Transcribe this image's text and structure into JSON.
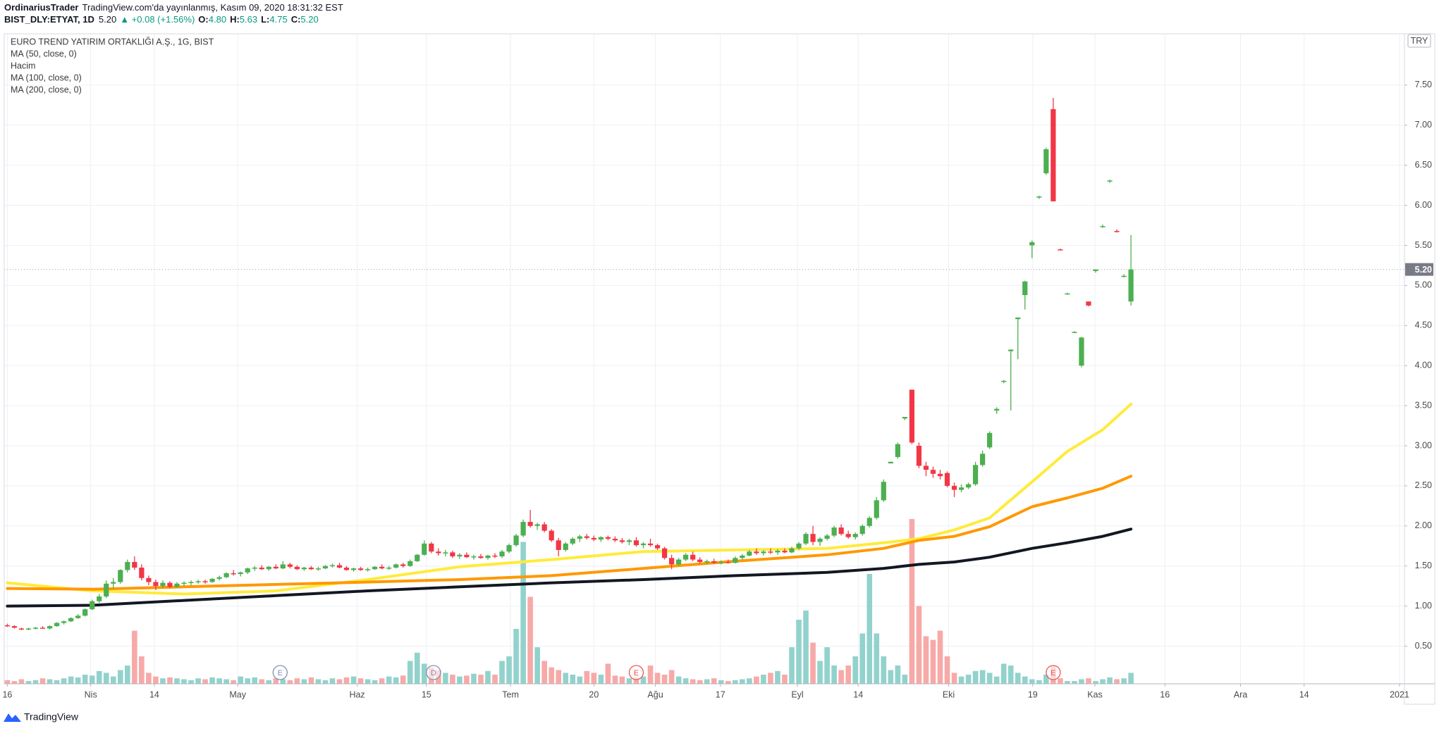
{
  "header": {
    "author": "OrdinariusTrader",
    "published": "TradingView.com'da yayınlanmış, Kasım 09, 2020 18:31:32 EST",
    "symbol": "BIST_DLY:ETYAT, 1D",
    "price": "5.20",
    "change": "▲ +0.08 (+1.56%)",
    "ohlc": [
      {
        "key": "O:",
        "value": "4.80"
      },
      {
        "key": "H:",
        "value": "5.63"
      },
      {
        "key": "L:",
        "value": "4.75"
      },
      {
        "key": "C:",
        "value": "5.20"
      }
    ]
  },
  "chart_data": {
    "type": "candlestick",
    "title": "EURO TREND YATIRIM ORTAKLIĞI A.Ş., 1G, BIST",
    "currency": "TRY",
    "volume_name": "Hacim",
    "up_color": "#4caf50",
    "down_color": "#f23645",
    "up_volume_color": "#92d2cc",
    "down_volume_color": "#f7a9a8",
    "last_price": {
      "value": 5.2,
      "label": "5.20"
    },
    "xlim": [
      -0.44,
      197.7
    ],
    "ylim": [
      0.03,
      8.14
    ],
    "grid": true,
    "xticks": [
      {
        "value": 0,
        "label": "16"
      },
      {
        "value": 11.8,
        "label": "Nis"
      },
      {
        "value": 20.8,
        "label": "14"
      },
      {
        "value": 32.6,
        "label": "May"
      },
      {
        "value": 49.5,
        "label": "Haz"
      },
      {
        "value": 59.3,
        "label": "15"
      },
      {
        "value": 71.2,
        "label": "Tem"
      },
      {
        "value": 83,
        "label": "20"
      },
      {
        "value": 91.7,
        "label": "Ağu"
      },
      {
        "value": 100.9,
        "label": "17"
      },
      {
        "value": 111.8,
        "label": "Eyl"
      },
      {
        "value": 120.4,
        "label": "14"
      },
      {
        "value": 133.2,
        "label": "Eki"
      },
      {
        "value": 145.1,
        "label": "19"
      },
      {
        "value": 153.9,
        "label": "Kas"
      },
      {
        "value": 163.8,
        "label": "16"
      },
      {
        "value": 174.5,
        "label": "Ara"
      },
      {
        "value": 183.5,
        "label": "14"
      },
      {
        "value": 197,
        "label": "2021"
      }
    ],
    "yticks": [
      {
        "value": 0.5,
        "label": "0.50"
      },
      {
        "value": 1,
        "label": "1.00"
      },
      {
        "value": 1.5,
        "label": "1.50"
      },
      {
        "value": 2,
        "label": "2.00"
      },
      {
        "value": 2.5,
        "label": "2.50"
      },
      {
        "value": 3,
        "label": "3.00"
      },
      {
        "value": 3.5,
        "label": "3.50"
      },
      {
        "value": 4,
        "label": "4.00"
      },
      {
        "value": 4.5,
        "label": "4.50"
      },
      {
        "value": 5,
        "label": "5.00"
      },
      {
        "value": 5.5,
        "label": "5.50"
      },
      {
        "value": 6,
        "label": "6.00"
      },
      {
        "value": 6.5,
        "label": "6.50"
      },
      {
        "value": 7,
        "label": "7.00"
      },
      {
        "value": 7.5,
        "label": "7.50"
      }
    ],
    "candles": [
      [
        0.76,
        0.78,
        0.74,
        0.75
      ],
      [
        0.75,
        0.76,
        0.72,
        0.73
      ],
      [
        0.72,
        0.73,
        0.7,
        0.71
      ],
      [
        0.71,
        0.73,
        0.7,
        0.72
      ],
      [
        0.72,
        0.74,
        0.71,
        0.73
      ],
      [
        0.73,
        0.75,
        0.72,
        0.72
      ],
      [
        0.72,
        0.76,
        0.71,
        0.75
      ],
      [
        0.75,
        0.8,
        0.74,
        0.79
      ],
      [
        0.79,
        0.82,
        0.77,
        0.81
      ],
      [
        0.81,
        0.86,
        0.8,
        0.85
      ],
      [
        0.85,
        0.9,
        0.84,
        0.88
      ],
      [
        0.88,
        0.97,
        0.87,
        0.96
      ],
      [
        0.96,
        1.08,
        0.95,
        1.06
      ],
      [
        1.06,
        1.15,
        1.04,
        1.12
      ],
      [
        1.12,
        1.32,
        1.1,
        1.28
      ],
      [
        1.28,
        1.35,
        1.22,
        1.3
      ],
      [
        1.3,
        1.46,
        1.28,
        1.45
      ],
      [
        1.45,
        1.58,
        1.42,
        1.55
      ],
      [
        1.55,
        1.62,
        1.45,
        1.48
      ],
      [
        1.48,
        1.52,
        1.32,
        1.35
      ],
      [
        1.35,
        1.38,
        1.26,
        1.3
      ],
      [
        1.3,
        1.33,
        1.2,
        1.25
      ],
      [
        1.25,
        1.32,
        1.22,
        1.29
      ],
      [
        1.29,
        1.31,
        1.22,
        1.24
      ],
      [
        1.24,
        1.3,
        1.23,
        1.28
      ],
      [
        1.28,
        1.31,
        1.25,
        1.29
      ],
      [
        1.29,
        1.32,
        1.26,
        1.3
      ],
      [
        1.3,
        1.33,
        1.28,
        1.31
      ],
      [
        1.31,
        1.33,
        1.28,
        1.3
      ],
      [
        1.3,
        1.35,
        1.29,
        1.34
      ],
      [
        1.34,
        1.38,
        1.32,
        1.36
      ],
      [
        1.36,
        1.42,
        1.35,
        1.41
      ],
      [
        1.41,
        1.45,
        1.38,
        1.4
      ],
      [
        1.4,
        1.43,
        1.37,
        1.42
      ],
      [
        1.42,
        1.48,
        1.4,
        1.47
      ],
      [
        1.47,
        1.5,
        1.44,
        1.48
      ],
      [
        1.48,
        1.51,
        1.45,
        1.46
      ],
      [
        1.46,
        1.5,
        1.44,
        1.49
      ],
      [
        1.49,
        1.52,
        1.46,
        1.47
      ],
      [
        1.47,
        1.56,
        1.46,
        1.52
      ],
      [
        1.52,
        1.54,
        1.47,
        1.49
      ],
      [
        1.49,
        1.51,
        1.45,
        1.46
      ],
      [
        1.46,
        1.49,
        1.44,
        1.48
      ],
      [
        1.48,
        1.5,
        1.45,
        1.46
      ],
      [
        1.46,
        1.49,
        1.44,
        1.47
      ],
      [
        1.47,
        1.51,
        1.46,
        1.5
      ],
      [
        1.5,
        1.53,
        1.48,
        1.51
      ],
      [
        1.51,
        1.54,
        1.47,
        1.48
      ],
      [
        1.48,
        1.5,
        1.44,
        1.45
      ],
      [
        1.45,
        1.48,
        1.43,
        1.47
      ],
      [
        1.47,
        1.49,
        1.44,
        1.45
      ],
      [
        1.45,
        1.48,
        1.43,
        1.46
      ],
      [
        1.46,
        1.5,
        1.45,
        1.49
      ],
      [
        1.49,
        1.52,
        1.46,
        1.47
      ],
      [
        1.47,
        1.5,
        1.45,
        1.48
      ],
      [
        1.48,
        1.53,
        1.47,
        1.52
      ],
      [
        1.52,
        1.54,
        1.48,
        1.5
      ],
      [
        1.5,
        1.58,
        1.49,
        1.56
      ],
      [
        1.56,
        1.65,
        1.55,
        1.64
      ],
      [
        1.64,
        1.82,
        1.63,
        1.78
      ],
      [
        1.78,
        1.8,
        1.66,
        1.68
      ],
      [
        1.68,
        1.72,
        1.63,
        1.66
      ],
      [
        1.66,
        1.7,
        1.62,
        1.67
      ],
      [
        1.67,
        1.69,
        1.6,
        1.62
      ],
      [
        1.62,
        1.66,
        1.59,
        1.64
      ],
      [
        1.64,
        1.67,
        1.6,
        1.61
      ],
      [
        1.61,
        1.64,
        1.58,
        1.62
      ],
      [
        1.62,
        1.65,
        1.59,
        1.6
      ],
      [
        1.6,
        1.64,
        1.58,
        1.63
      ],
      [
        1.63,
        1.66,
        1.6,
        1.62
      ],
      [
        1.62,
        1.7,
        1.6,
        1.68
      ],
      [
        1.68,
        1.78,
        1.66,
        1.76
      ],
      [
        1.76,
        1.9,
        1.74,
        1.88
      ],
      [
        1.88,
        2.08,
        1.86,
        2.05
      ],
      [
        2.05,
        2.2,
        1.98,
        2.0
      ],
      [
        2.0,
        2.04,
        1.95,
        2.02
      ],
      [
        2.02,
        2.05,
        1.92,
        1.94
      ],
      [
        1.94,
        1.96,
        1.8,
        1.82
      ],
      [
        1.82,
        1.85,
        1.62,
        1.7
      ],
      [
        1.7,
        1.8,
        1.68,
        1.78
      ],
      [
        1.78,
        1.86,
        1.76,
        1.84
      ],
      [
        1.84,
        1.89,
        1.8,
        1.87
      ],
      [
        1.87,
        1.9,
        1.83,
        1.85
      ],
      [
        1.85,
        1.88,
        1.81,
        1.83
      ],
      [
        1.83,
        1.87,
        1.8,
        1.86
      ],
      [
        1.86,
        1.88,
        1.82,
        1.84
      ],
      [
        1.84,
        1.87,
        1.8,
        1.82
      ],
      [
        1.82,
        1.85,
        1.78,
        1.8
      ],
      [
        1.8,
        1.84,
        1.76,
        1.82
      ],
      [
        1.82,
        1.86,
        1.74,
        1.76
      ],
      [
        1.76,
        1.8,
        1.72,
        1.78
      ],
      [
        1.78,
        1.84,
        1.74,
        1.76
      ],
      [
        1.76,
        1.78,
        1.7,
        1.72
      ],
      [
        1.72,
        1.74,
        1.58,
        1.6
      ],
      [
        1.6,
        1.64,
        1.46,
        1.52
      ],
      [
        1.52,
        1.6,
        1.5,
        1.58
      ],
      [
        1.58,
        1.66,
        1.56,
        1.64
      ],
      [
        1.64,
        1.68,
        1.56,
        1.58
      ],
      [
        1.58,
        1.61,
        1.53,
        1.55
      ],
      [
        1.55,
        1.58,
        1.52,
        1.56
      ],
      [
        1.56,
        1.59,
        1.53,
        1.54
      ],
      [
        1.54,
        1.57,
        1.52,
        1.55
      ],
      [
        1.55,
        1.58,
        1.53,
        1.54
      ],
      [
        1.54,
        1.62,
        1.53,
        1.6
      ],
      [
        1.6,
        1.65,
        1.58,
        1.63
      ],
      [
        1.63,
        1.7,
        1.62,
        1.68
      ],
      [
        1.68,
        1.72,
        1.64,
        1.66
      ],
      [
        1.66,
        1.7,
        1.63,
        1.68
      ],
      [
        1.68,
        1.72,
        1.65,
        1.67
      ],
      [
        1.67,
        1.71,
        1.64,
        1.69
      ],
      [
        1.69,
        1.72,
        1.66,
        1.67
      ],
      [
        1.67,
        1.74,
        1.66,
        1.72
      ],
      [
        1.72,
        1.8,
        1.7,
        1.78
      ],
      [
        1.78,
        1.92,
        1.76,
        1.9
      ],
      [
        1.9,
        2.0,
        1.76,
        1.8
      ],
      [
        1.8,
        1.86,
        1.75,
        1.84
      ],
      [
        1.84,
        1.9,
        1.82,
        1.88
      ],
      [
        1.88,
        2.0,
        1.86,
        1.98
      ],
      [
        1.98,
        2.02,
        1.88,
        1.9
      ],
      [
        1.9,
        1.94,
        1.84,
        1.86
      ],
      [
        1.86,
        1.92,
        1.83,
        1.9
      ],
      [
        1.9,
        2.02,
        1.88,
        2.0
      ],
      [
        2.0,
        2.12,
        1.98,
        2.1
      ],
      [
        2.1,
        2.36,
        2.08,
        2.32
      ],
      [
        2.32,
        2.58,
        2.3,
        2.55
      ],
      [
        2.78,
        2.8,
        2.78,
        2.8
      ],
      [
        2.86,
        3.04,
        2.84,
        3.02
      ],
      [
        3.34,
        3.36,
        3.32,
        3.36
      ],
      [
        3.7,
        3.7,
        3.02,
        3.04
      ],
      [
        3.0,
        3.04,
        2.72,
        2.75
      ],
      [
        2.75,
        2.8,
        2.62,
        2.7
      ],
      [
        2.7,
        2.74,
        2.6,
        2.65
      ],
      [
        2.65,
        2.7,
        2.58,
        2.62
      ],
      [
        2.66,
        2.68,
        2.48,
        2.5
      ],
      [
        2.5,
        2.54,
        2.36,
        2.45
      ],
      [
        2.45,
        2.52,
        2.42,
        2.48
      ],
      [
        2.48,
        2.54,
        2.46,
        2.52
      ],
      [
        2.52,
        2.8,
        2.5,
        2.76
      ],
      [
        2.76,
        2.94,
        2.74,
        2.9
      ],
      [
        2.98,
        3.18,
        2.96,
        3.16
      ],
      [
        3.44,
        3.48,
        3.4,
        3.46
      ],
      [
        3.8,
        3.82,
        3.78,
        3.81
      ],
      [
        4.18,
        4.2,
        3.44,
        4.2
      ],
      [
        4.58,
        4.6,
        4.08,
        4.6
      ],
      [
        4.88,
        5.06,
        4.7,
        5.05
      ],
      [
        5.5,
        5.56,
        5.34,
        5.54
      ],
      [
        6.1,
        6.12,
        6.08,
        6.11
      ],
      [
        6.4,
        6.72,
        6.38,
        6.7
      ],
      [
        7.2,
        7.34,
        6.05,
        6.05
      ],
      [
        5.45,
        5.46,
        5.44,
        5.44
      ],
      [
        4.9,
        4.91,
        4.89,
        4.9
      ],
      [
        4.42,
        4.43,
        4.41,
        4.42
      ],
      [
        4.0,
        4.36,
        3.98,
        4.35
      ],
      [
        4.8,
        4.8,
        4.74,
        4.75
      ],
      [
        5.18,
        5.2,
        5.16,
        5.2
      ],
      [
        5.74,
        5.76,
        5.72,
        5.74
      ],
      [
        6.3,
        6.32,
        6.28,
        6.31
      ],
      [
        5.68,
        5.7,
        5.66,
        5.67
      ],
      [
        5.12,
        5.14,
        5.1,
        5.12
      ],
      [
        4.8,
        5.63,
        4.75,
        5.2
      ]
    ],
    "volume": [
      4,
      3,
      5,
      3,
      4,
      6,
      5,
      4,
      6,
      8,
      7,
      10,
      9,
      14,
      12,
      8,
      15,
      20,
      58,
      30,
      12,
      8,
      6,
      7,
      6,
      5,
      4,
      6,
      5,
      7,
      6,
      5,
      4,
      8,
      6,
      7,
      5,
      4,
      6,
      5,
      4,
      6,
      5,
      7,
      5,
      4,
      6,
      5,
      7,
      8,
      6,
      5,
      4,
      6,
      8,
      7,
      9,
      25,
      34,
      22,
      18,
      15,
      12,
      10,
      8,
      9,
      11,
      10,
      14,
      10,
      25,
      30,
      60,
      155,
      95,
      40,
      25,
      18,
      15,
      12,
      10,
      8,
      14,
      12,
      10,
      22,
      9,
      8,
      6,
      7,
      8,
      20,
      12,
      10,
      15,
      8,
      6,
      5,
      4,
      5,
      6,
      4,
      3,
      4,
      5,
      6,
      8,
      10,
      12,
      14,
      10,
      40,
      70,
      80,
      45,
      25,
      40,
      20,
      15,
      20,
      30,
      55,
      120,
      55,
      30,
      15,
      20,
      10,
      180,
      85,
      52,
      48,
      58,
      30,
      12,
      8,
      10,
      14,
      15,
      12,
      8,
      22,
      20,
      12,
      8,
      5,
      4,
      10,
      20,
      6,
      3,
      3,
      5,
      6,
      3,
      5,
      7,
      5,
      6,
      12
    ],
    "series": [
      {
        "name": "MA (50, close, 0)",
        "color": "#ffeb3b",
        "x": [
          0,
          12,
          25,
          38,
          51,
          64,
          77,
          90,
          103,
          116,
          124,
          129,
          134,
          139,
          145,
          150,
          155,
          159
        ],
        "values": [
          1.29,
          1.19,
          1.15,
          1.19,
          1.33,
          1.49,
          1.58,
          1.68,
          1.7,
          1.72,
          1.79,
          1.84,
          1.95,
          2.1,
          2.55,
          2.93,
          3.2,
          3.52
        ]
      },
      {
        "name": "MA (100, close, 0)",
        "color": "#ff9800",
        "x": [
          0,
          12,
          25,
          38,
          51,
          64,
          77,
          90,
          103,
          116,
          124,
          129,
          134,
          139,
          145,
          150,
          155,
          159
        ],
        "values": [
          1.22,
          1.21,
          1.24,
          1.27,
          1.3,
          1.33,
          1.38,
          1.47,
          1.56,
          1.64,
          1.72,
          1.82,
          1.87,
          1.99,
          2.24,
          2.35,
          2.47,
          2.62
        ]
      },
      {
        "name": "MA (200, close, 0)",
        "color": "#131722",
        "x": [
          0,
          12,
          25,
          38,
          51,
          64,
          77,
          90,
          103,
          116,
          124,
          129,
          134,
          139,
          145,
          150,
          155,
          159
        ],
        "values": [
          1.0,
          1.01,
          1.07,
          1.13,
          1.19,
          1.24,
          1.29,
          1.33,
          1.38,
          1.42,
          1.47,
          1.52,
          1.55,
          1.61,
          1.72,
          1.79,
          1.87,
          1.96
        ]
      }
    ],
    "events": [
      {
        "label": "E",
        "x": 38.6,
        "color": "#7f8fb0"
      },
      {
        "label": "D",
        "x": 60.3,
        "color": "#7f8fb0"
      },
      {
        "label": "E",
        "x": 89,
        "color": "#ef5350"
      },
      {
        "label": "E",
        "x": 148,
        "color": "#ef5350"
      }
    ]
  },
  "footer": "TradingView"
}
